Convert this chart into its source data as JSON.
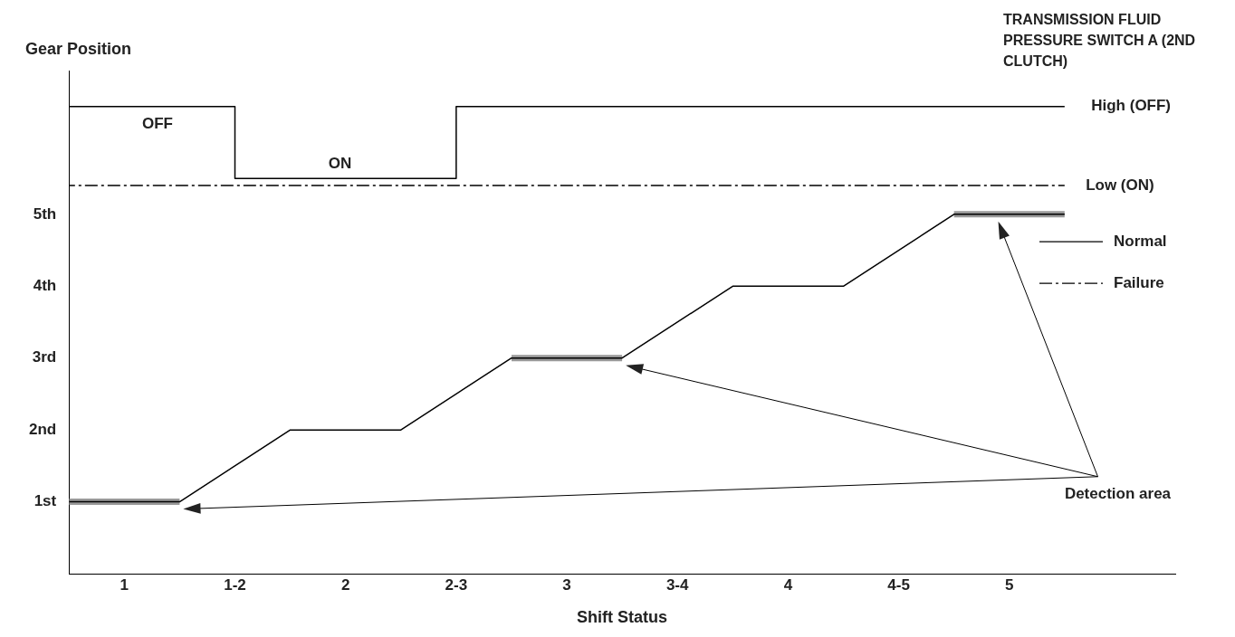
{
  "chart_data": {
    "type": "line",
    "title": "TRANSMISSION FLUID PRESSURE SWITCH A (2ND CLUTCH)",
    "xlabel": "Shift Status",
    "ylabel": "Gear Position",
    "xlim": [
      0.75,
      5.75
    ],
    "ylim": [
      0,
      7
    ],
    "xticks": [
      1,
      {
        "value": 1.5,
        "label": "1-2"
      },
      2,
      {
        "value": 2.5,
        "label": "2-3"
      },
      3,
      {
        "value": 3.5,
        "label": "3-4"
      },
      4,
      {
        "value": 4.5,
        "label": "4-5"
      },
      5
    ],
    "yticks": [
      {
        "value": 1,
        "label": "1st"
      },
      {
        "value": 2,
        "label": "2nd"
      },
      {
        "value": 3,
        "label": "3rd"
      },
      {
        "value": 4,
        "label": "4th"
      },
      {
        "value": 5,
        "label": "5th"
      }
    ],
    "marker": "none",
    "legend": "right",
    "series": [
      {
        "x": [
          0.75,
          1.25,
          1.75,
          2.25,
          2.75,
          3.25,
          3.75,
          4.25,
          4.75,
          5.25
        ],
        "values": [
          1,
          1,
          2,
          2,
          3,
          3,
          4,
          4,
          5,
          5
        ],
        "color": "#000000"
      },
      {
        "x": [
          0.75,
          1.25,
          1.75,
          2.75,
          3.25,
          3.75,
          4.75,
          5.25
        ],
        "values": [
          1,
          1,
          null,
          3,
          3,
          null,
          5,
          5
        ],
        "color": "#999999"
      },
      {
        "name": "Normal",
        "x": [
          0.75,
          1.5,
          1.5,
          2.5,
          2.5,
          5.25
        ],
        "values": [
          6.5,
          6.5,
          5.5,
          5.5,
          6.5,
          6.5
        ],
        "color": "#000000"
      },
      {
        "name": "Failure",
        "x": [
          0.75,
          5.25
        ],
        "values": [
          5.4,
          5.4
        ],
        "color": "#000000",
        "line_style": "dashed"
      }
    ],
    "annotations": [
      "OFF",
      "ON",
      "High (OFF)",
      "Low (ON)",
      "Detection area"
    ]
  }
}
